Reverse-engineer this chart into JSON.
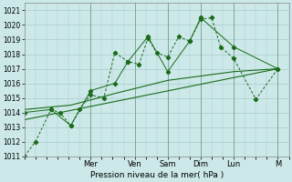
{
  "xlabel": "Pression niveau de la mer( hPa )",
  "ylim": [
    1011,
    1021.5
  ],
  "xlim": [
    0,
    12
  ],
  "yticks": [
    1011,
    1012,
    1013,
    1014,
    1015,
    1016,
    1017,
    1018,
    1019,
    1020,
    1021
  ],
  "day_labels": [
    "Mer",
    "Ven",
    "Sam",
    "Dim",
    "Lun",
    "M"
  ],
  "day_positions": [
    3.0,
    5.0,
    6.5,
    8.0,
    9.5,
    11.5
  ],
  "bg_color": "#cce8e8",
  "grid_color": "#aacccc",
  "line_color": "#1a6b1a",
  "line1_x": [
    0.0,
    0.5,
    1.2,
    1.6,
    2.1,
    2.5,
    3.0,
    3.6,
    4.1,
    4.7,
    5.2,
    5.6,
    6.0,
    6.5,
    7.0,
    7.5,
    8.0,
    8.5,
    8.9,
    9.5,
    10.5,
    11.5
  ],
  "line1_y": [
    1011.0,
    1012.0,
    1014.2,
    1014.0,
    1013.1,
    1014.2,
    1015.2,
    1015.0,
    1018.1,
    1017.5,
    1017.3,
    1019.1,
    1018.1,
    1017.8,
    1019.2,
    1018.9,
    1020.4,
    1020.5,
    1018.5,
    1017.7,
    1014.9,
    1017.0
  ],
  "line2_x": [
    0.0,
    1.2,
    2.1,
    3.0,
    4.1,
    4.7,
    5.6,
    6.5,
    7.5,
    8.0,
    9.5,
    11.5
  ],
  "line2_y": [
    1014.0,
    1014.2,
    1013.1,
    1015.5,
    1016.0,
    1017.5,
    1019.2,
    1016.8,
    1018.9,
    1020.5,
    1018.5,
    1017.0
  ],
  "line3_x": [
    0.0,
    2.1,
    4.1,
    6.5,
    9.5,
    11.5
  ],
  "line3_y": [
    1014.2,
    1014.5,
    1015.3,
    1016.2,
    1016.8,
    1017.0
  ],
  "line4_x": [
    0.0,
    11.5
  ],
  "line4_y": [
    1013.5,
    1017.0
  ]
}
